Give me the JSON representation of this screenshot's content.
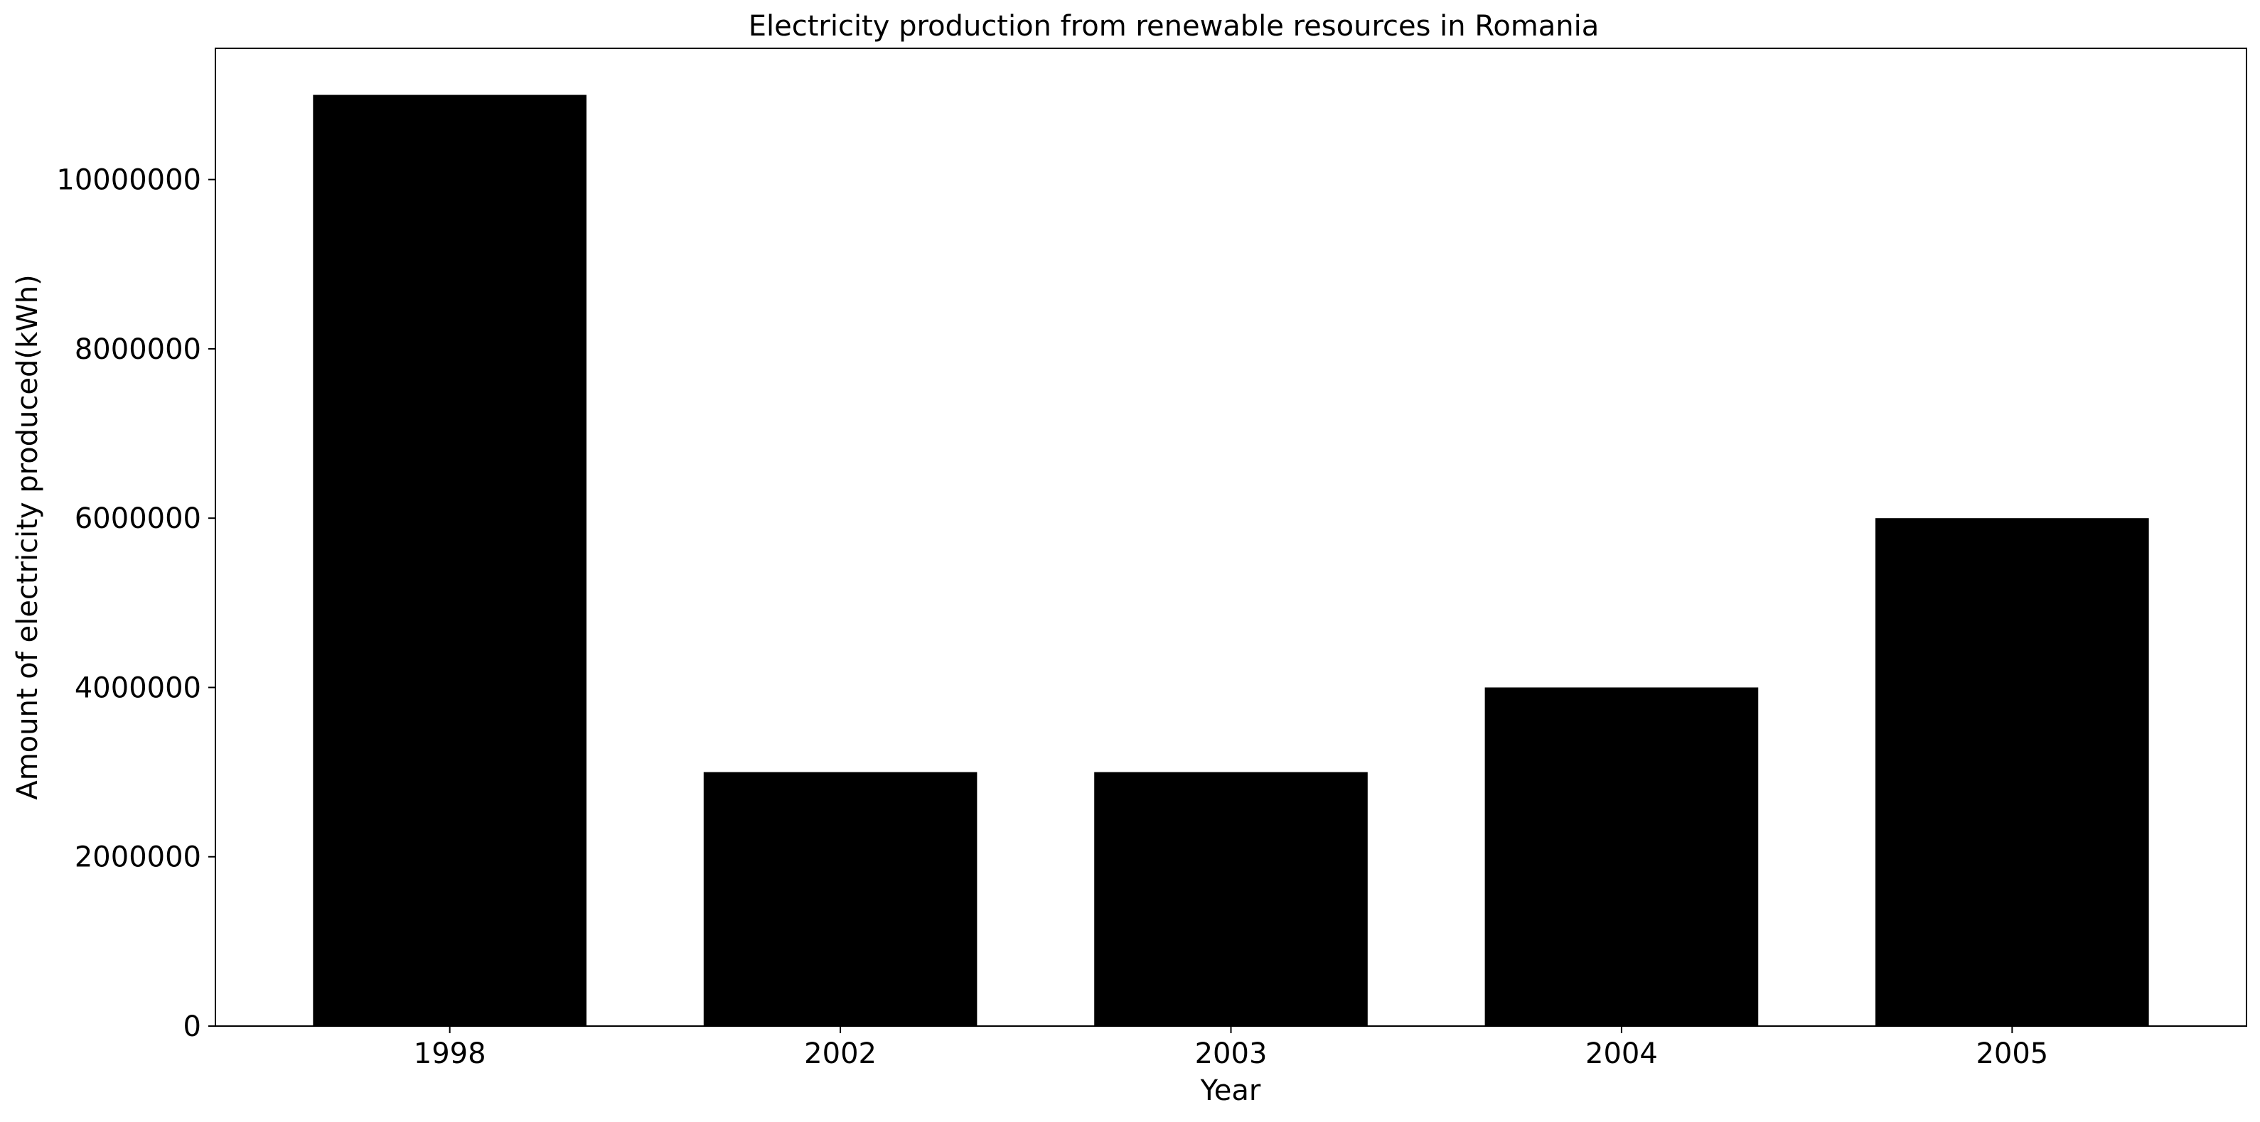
{
  "chart_data": {
    "type": "bar",
    "title": "Electricity production from renewable resources in Romania",
    "xlabel": "Year",
    "ylabel": "Amount of electricity produced(kWh)",
    "categories": [
      "1998",
      "2002",
      "2003",
      "2004",
      "2005"
    ],
    "values": [
      11000000,
      3000000,
      3000000,
      4000000,
      6000000
    ],
    "ylim": [
      0,
      11550000
    ],
    "yticks": [
      0,
      2000000,
      4000000,
      6000000,
      8000000,
      10000000
    ],
    "ytick_labels": [
      "0",
      "2000000",
      "4000000",
      "6000000",
      "8000000",
      "10000000"
    ],
    "bar_color": "#000000",
    "grid": false,
    "legend": "none"
  }
}
